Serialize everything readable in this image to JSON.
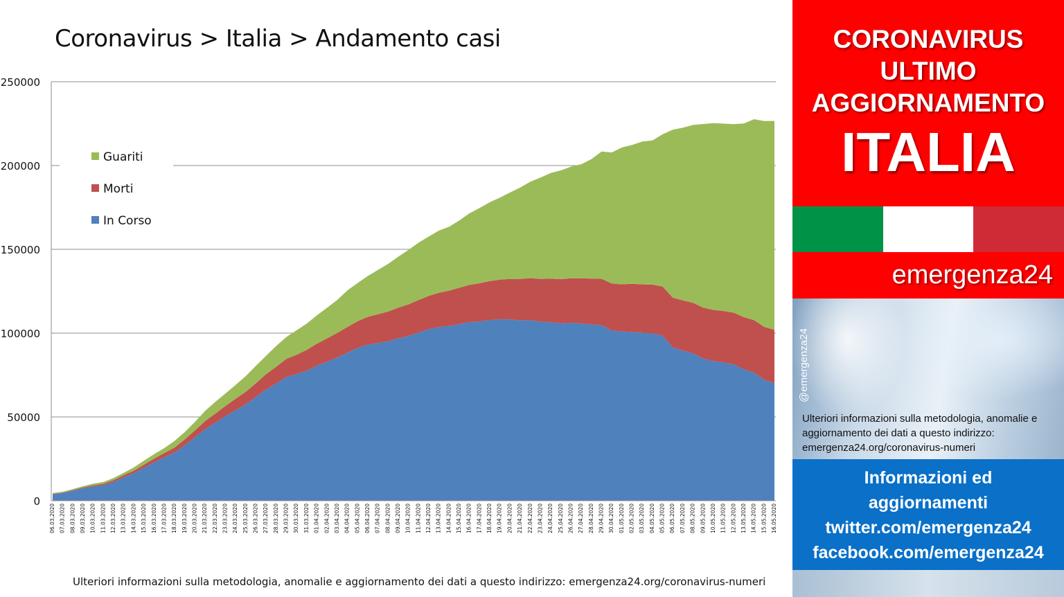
{
  "title": "Coronavirus > Italia > Andamento casi",
  "footer_note": "Ulteriori informazioni sulla metodologia, anomalie e aggiornamento dei dati a questo indirizzo: emergenza24.org/coronavirus-numeri",
  "panel": {
    "headline": [
      "CORONAVIRUS",
      "ULTIMO",
      "AGGIORNAMENTO"
    ],
    "country": "ITALIA",
    "brand": "emergenza24",
    "handle": "@emergenza24",
    "photo_note": "Ulteriori informazioni sulla metodologia, anomalie e aggiornamento dei dati a questo indirizzo: emergenza24.org/coronavirus-numeri",
    "info": [
      "Informazioni ed",
      "aggiornamenti",
      "twitter.com/emergenza24",
      "facebook.com/emergenza24"
    ],
    "flag_colors": [
      "#009246",
      "#ffffff",
      "#ce2b37"
    ]
  },
  "chart_data": {
    "type": "area",
    "stacked": true,
    "title": "Coronavirus > Italia > Andamento casi",
    "xlabel": "",
    "ylabel": "",
    "ylim": [
      0,
      250000
    ],
    "yticks": [
      0,
      50000,
      100000,
      150000,
      200000,
      250000
    ],
    "grid": true,
    "legend": "left",
    "x": [
      "06.03.2020",
      "07.03.2020",
      "08.03.2020",
      "09.03.2020",
      "10.03.2020",
      "11.03.2020",
      "12.03.2020",
      "13.03.2020",
      "14.03.2020",
      "15.03.2020",
      "16.03.2020",
      "17.03.2020",
      "18.03.2020",
      "19.03.2020",
      "20.03.2020",
      "21.03.2020",
      "22.03.2020",
      "23.03.2020",
      "24.03.2020",
      "25.03.2020",
      "26.03.2020",
      "27.03.2020",
      "28.03.2020",
      "29.03.2020",
      "30.03.2020",
      "31.03.2020",
      "01.04.2020",
      "02.04.2020",
      "03.04.2020",
      "04.04.2020",
      "05.04.2020",
      "06.04.2020",
      "07.04.2020",
      "08.04.2020",
      "09.04.2020",
      "10.04.2020",
      "11.04.2020",
      "12.04.2020",
      "13.04.2020",
      "14.04.2020",
      "15.04.2020",
      "16.04.2020",
      "17.04.2020",
      "18.04.2020",
      "19.04.2020",
      "20.04.2020",
      "21.04.2020",
      "22.04.2020",
      "23.04.2020",
      "24.04.2020",
      "25.04.2020",
      "26.04.2020",
      "27.04.2020",
      "28.04.2020",
      "29.04.2020",
      "30.04.2020",
      "01.05.2020",
      "02.05.2020",
      "03.05.2020",
      "04.05.2020",
      "05.05.2020",
      "06.05.2020",
      "07.05.2020",
      "08.05.2020",
      "09.05.2020",
      "10.05.2020",
      "11.05.2020",
      "12.05.2020",
      "13.05.2020",
      "14.05.2020",
      "15.05.2020",
      "16.05.2020"
    ],
    "series": [
      {
        "name": "In Corso",
        "color": "#4f81bd",
        "values": [
          3900,
          4600,
          6000,
          7500,
          8500,
          9300,
          11300,
          14000,
          16500,
          19800,
          23000,
          26000,
          28700,
          33200,
          37900,
          42700,
          46500,
          50500,
          54000,
          57500,
          62000,
          66400,
          70000,
          73900,
          75500,
          77600,
          80600,
          83000,
          85400,
          88300,
          91200,
          93200,
          94100,
          95200,
          96900,
          98300,
          100300,
          102300,
          103600,
          104300,
          105400,
          106600,
          107000,
          107800,
          108300,
          108200,
          107700,
          107700,
          106800,
          106500,
          105800,
          106100,
          105800,
          105200,
          104700,
          101600,
          100900,
          100700,
          100200,
          99900,
          98500,
          91500,
          89600,
          87900,
          84800,
          83300,
          82500,
          81300,
          78400,
          76400,
          72100,
          70200
        ]
      },
      {
        "name": "Morti",
        "color": "#c0504d",
        "values": [
          200,
          230,
          370,
          460,
          630,
          830,
          1020,
          1270,
          1440,
          1810,
          2160,
          2500,
          2980,
          3400,
          4030,
          4830,
          5480,
          6080,
          6820,
          7500,
          8170,
          9130,
          10020,
          10780,
          11590,
          12430,
          13160,
          13920,
          14680,
          15360,
          15890,
          16520,
          17130,
          17670,
          18280,
          18850,
          19470,
          19900,
          20470,
          21070,
          21650,
          22170,
          22750,
          23230,
          23660,
          24110,
          24650,
          25090,
          25550,
          25970,
          26380,
          26640,
          26980,
          27360,
          27680,
          27970,
          28240,
          28710,
          28880,
          29080,
          29320,
          29680,
          29960,
          30200,
          30400,
          30560,
          30740,
          30910,
          31110,
          31370,
          31610,
          31760
        ]
      },
      {
        "name": "Guariti",
        "color": "#9bbb59",
        "values": [
          500,
          550,
          620,
          720,
          1050,
          1050,
          1260,
          1440,
          1970,
          2340,
          2750,
          2940,
          4030,
          4440,
          5130,
          6070,
          7030,
          7430,
          8330,
          9360,
          10360,
          11000,
          12380,
          13030,
          14620,
          15730,
          16850,
          18280,
          19750,
          21820,
          22840,
          24390,
          26490,
          28470,
          30460,
          32530,
          34210,
          35440,
          37130,
          38090,
          40160,
          42730,
          44930,
          47060,
          48880,
          51600,
          54540,
          57580,
          60500,
          63120,
          64930,
          66620,
          68000,
          71250,
          75950,
          78250,
          81650,
          82880,
          85230,
          86010,
          90830,
          100230,
          103000,
          106110,
          109590,
          111420,
          111770,
          112520,
          115590,
          119870,
          122810,
          124660
        ]
      }
    ]
  }
}
